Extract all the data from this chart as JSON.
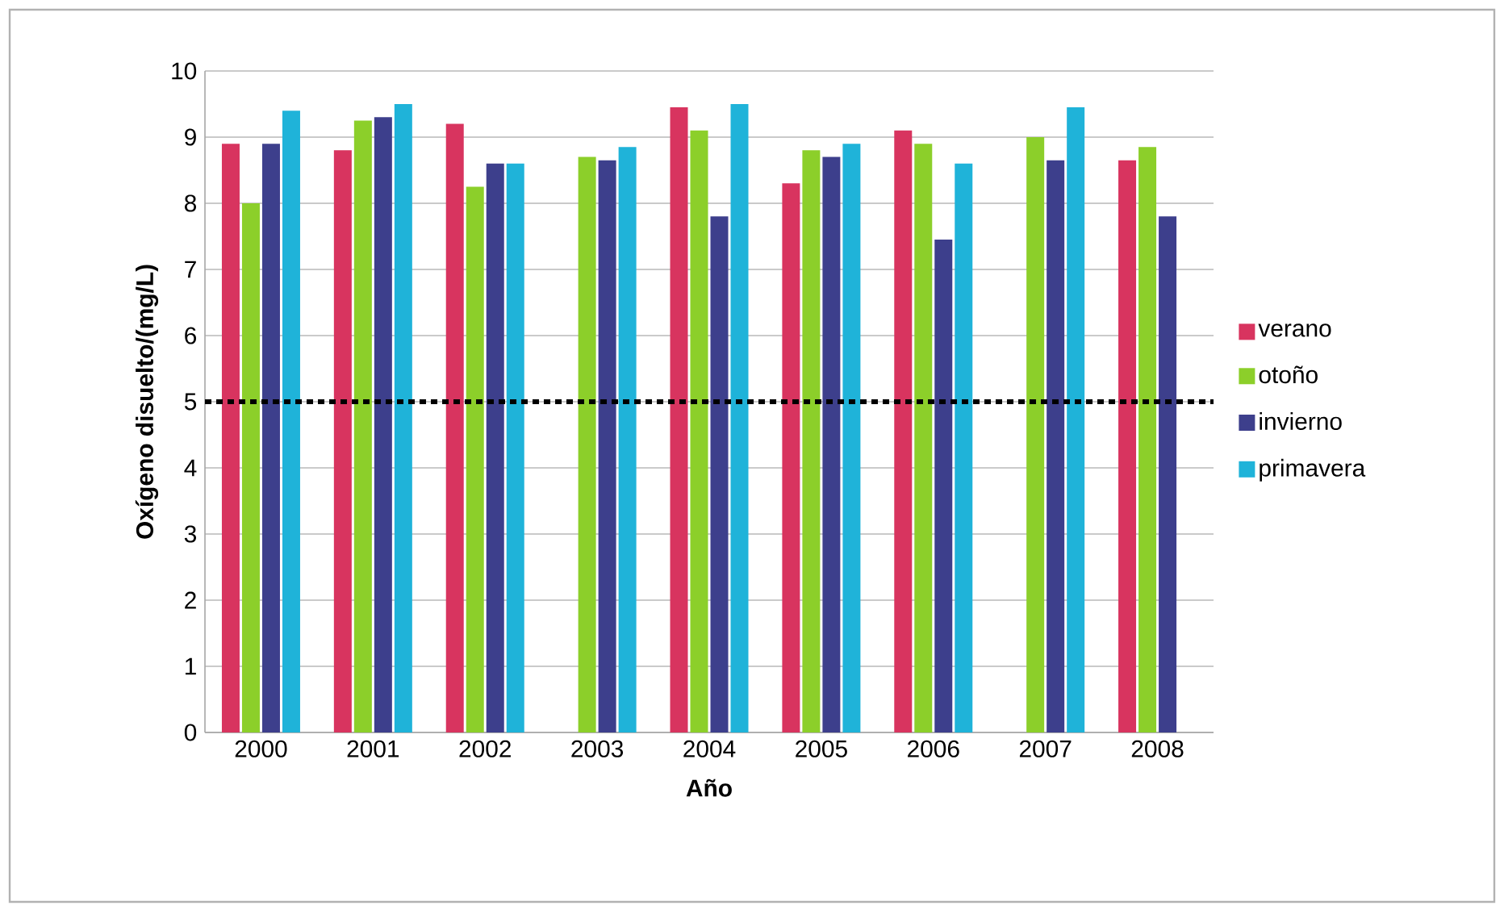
{
  "chart_data": {
    "type": "bar",
    "xlabel": "Año",
    "ylabel": "Oxígeno disuelto/(mg/L)",
    "categories": [
      "2000",
      "2001",
      "2002",
      "2003",
      "2004",
      "2005",
      "2006",
      "2007",
      "2008"
    ],
    "series": [
      {
        "name": "verano",
        "color": "#d8345f",
        "values": [
          8.9,
          8.8,
          9.2,
          null,
          9.45,
          8.3,
          9.1,
          null,
          8.65
        ]
      },
      {
        "name": "otoño",
        "color": "#8ccf2a",
        "values": [
          8.0,
          9.25,
          8.25,
          8.7,
          9.1,
          8.8,
          8.9,
          9.0,
          8.85
        ]
      },
      {
        "name": "invierno",
        "color": "#3d3f8c",
        "values": [
          8.9,
          9.3,
          8.6,
          8.65,
          7.8,
          8.7,
          7.45,
          8.65,
          7.8
        ]
      },
      {
        "name": "primavera",
        "color": "#1fb3d9",
        "values": [
          9.4,
          9.5,
          8.6,
          8.85,
          9.5,
          8.9,
          8.6,
          9.45,
          null
        ]
      }
    ],
    "ylim": [
      0,
      10
    ],
    "yticks": [
      0,
      1,
      2,
      3,
      4,
      5,
      6,
      7,
      8,
      9,
      10
    ],
    "ref_lines": [
      {
        "axis": "y",
        "value": 5,
        "color": "#000000",
        "line_style": "dotted"
      }
    ],
    "grid": "y",
    "legend": "right"
  }
}
